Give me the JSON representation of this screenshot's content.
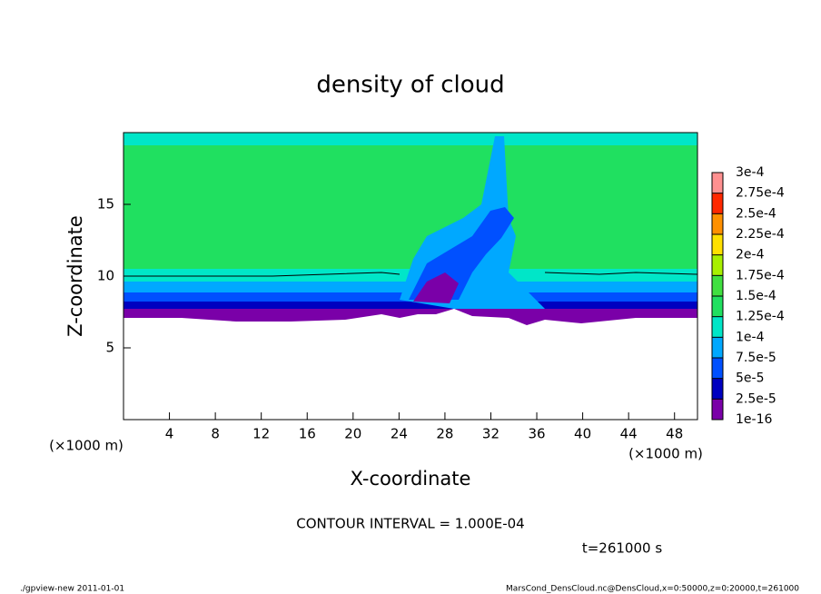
{
  "chart_data": {
    "type": "contour",
    "title": "density of cloud",
    "x_label": "X-coordinate",
    "y_label": "Z-coordinate",
    "x_unit": "(×1000 m)",
    "y_unit": "(×1000 m)",
    "contour_note": "CONTOUR INTERVAL = 1.000E-04",
    "time_note": "t=261000 s",
    "footer_left": "./gpview-new  2011-01-01",
    "footer_right": "MarsCond_DensCloud.nc@DensCloud,x=0:50000,z=0:20000,t=261000",
    "xlim": [
      0,
      50
    ],
    "xticks": [
      4,
      8,
      12,
      16,
      20,
      24,
      28,
      32,
      36,
      40,
      44,
      48
    ],
    "ylim": [
      0,
      20
    ],
    "yticks": [
      5,
      10,
      15
    ],
    "colorbar": {
      "levels": [
        {
          "value": 1e-16,
          "label": "1e-16"
        },
        {
          "value": 2.5e-05,
          "label": "2.5e-5"
        },
        {
          "value": 5e-05,
          "label": "5e-5"
        },
        {
          "value": 7.5e-05,
          "label": "7.5e-5"
        },
        {
          "value": 0.0001,
          "label": "1e-4"
        },
        {
          "value": 0.000125,
          "label": "1.25e-4"
        },
        {
          "value": 0.00015,
          "label": "1.5e-4"
        },
        {
          "value": 0.000175,
          "label": "1.75e-4"
        },
        {
          "value": 0.0002,
          "label": "2e-4"
        },
        {
          "value": 0.000225,
          "label": "2.25e-4"
        },
        {
          "value": 0.00025,
          "label": "2.5e-4"
        },
        {
          "value": 0.000275,
          "label": "2.75e-4"
        },
        {
          "value": 0.0003,
          "label": "3e-4"
        }
      ],
      "colors": [
        "#7a00a8",
        "#0000c0",
        "#0050ff",
        "#00a8ff",
        "#00e6c8",
        "#20e060",
        "#40e040",
        "#a8f000",
        "#ffe000",
        "#ff9000",
        "#ff2800",
        "#ff9090"
      ]
    }
  }
}
